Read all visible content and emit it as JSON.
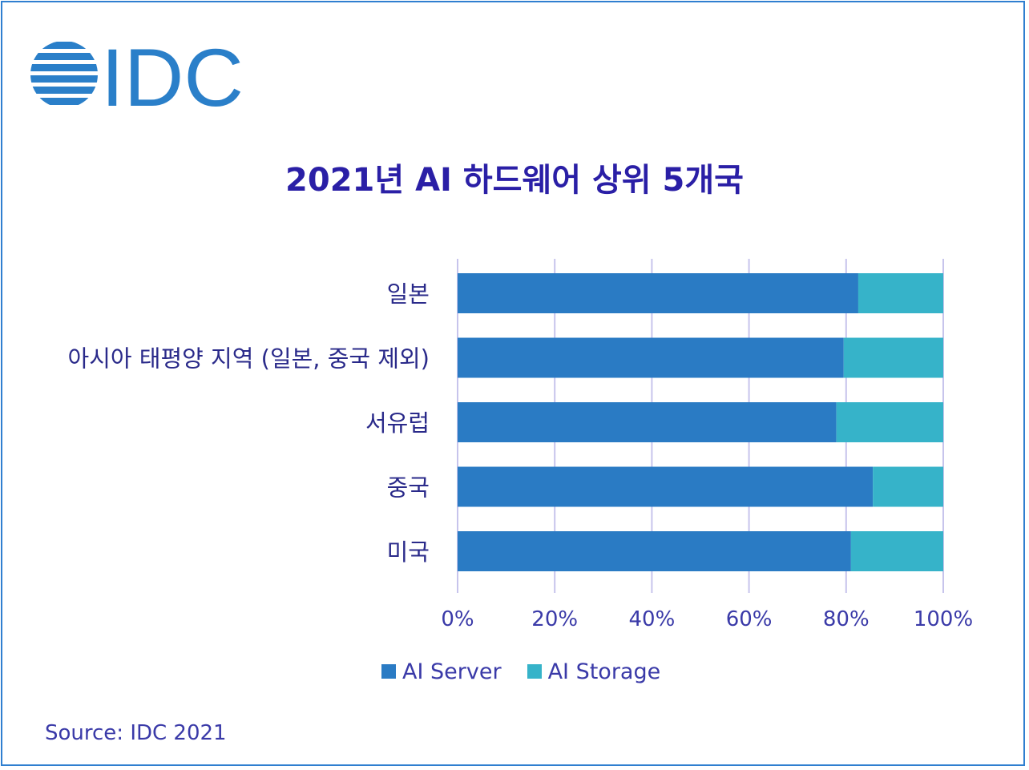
{
  "logo": {
    "text": "IDC",
    "color": "#2a7fc9",
    "icon": "idc-stripes-icon"
  },
  "source": "Source: IDC 2021",
  "colors": {
    "server": "#2a7bc4",
    "storage": "#36b3c9",
    "title": "#2a1fa6",
    "grid": "#c7c4ec",
    "frame": "#2f7fd0"
  },
  "chart_data": {
    "type": "bar",
    "orientation": "horizontal",
    "stacked": true,
    "title": "2021년 AI 하드웨어 상위 5개국",
    "categories": [
      "일본",
      "아시아 태평양 지역 (일본, 중국 제외)",
      "서유럽",
      "중국",
      "미국"
    ],
    "series": [
      {
        "name": "AI Server",
        "values": [
          82.5,
          79.5,
          78,
          85.5,
          81
        ]
      },
      {
        "name": "AI Storage",
        "values": [
          17.5,
          20.5,
          22,
          14.5,
          19
        ]
      }
    ],
    "xlim": [
      0,
      100
    ],
    "xticks": [
      "0%",
      "20%",
      "40%",
      "60%",
      "80%",
      "100%"
    ],
    "grid": true,
    "legend": "bottom"
  }
}
